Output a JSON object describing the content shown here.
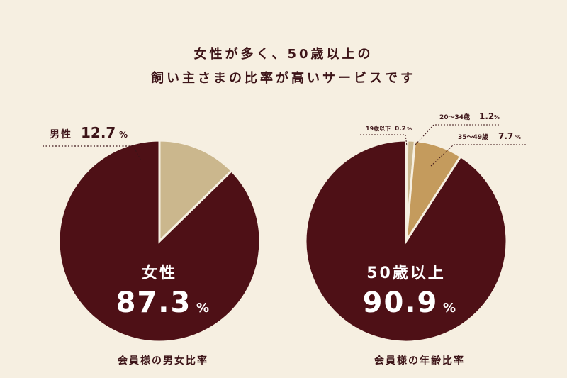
{
  "headline": {
    "line1": "女性が多く、50歳以上の",
    "line2": "飼い主さまの比率が高いサービスです"
  },
  "colors": {
    "background": "#f6efe1",
    "dark": "#4e1016",
    "beige": "#cbb78d",
    "tan": "#c49b5d",
    "light": "#d9c9a8",
    "text": "#3d1418"
  },
  "chart_data": [
    {
      "type": "pie",
      "caption": "会員様の男女比率",
      "slices": [
        {
          "label": "女性",
          "value": 87.3,
          "unit": "%",
          "color": "#4e1016"
        },
        {
          "label": "男性",
          "value": 12.7,
          "unit": "%",
          "color": "#cbb78d"
        }
      ]
    },
    {
      "type": "pie",
      "caption": "会員様の年齢比率",
      "slices": [
        {
          "label": "50歳以上",
          "value": 90.9,
          "unit": "%",
          "color": "#4e1016"
        },
        {
          "label": "19歳以下",
          "value": 0.2,
          "unit": "%",
          "color": "#d9c9a8"
        },
        {
          "label": "20～34歳",
          "value": 1.2,
          "unit": "%",
          "color": "#cbb78d"
        },
        {
          "label": "35～49歳",
          "value": 7.7,
          "unit": "%",
          "color": "#c49b5d"
        }
      ]
    }
  ]
}
